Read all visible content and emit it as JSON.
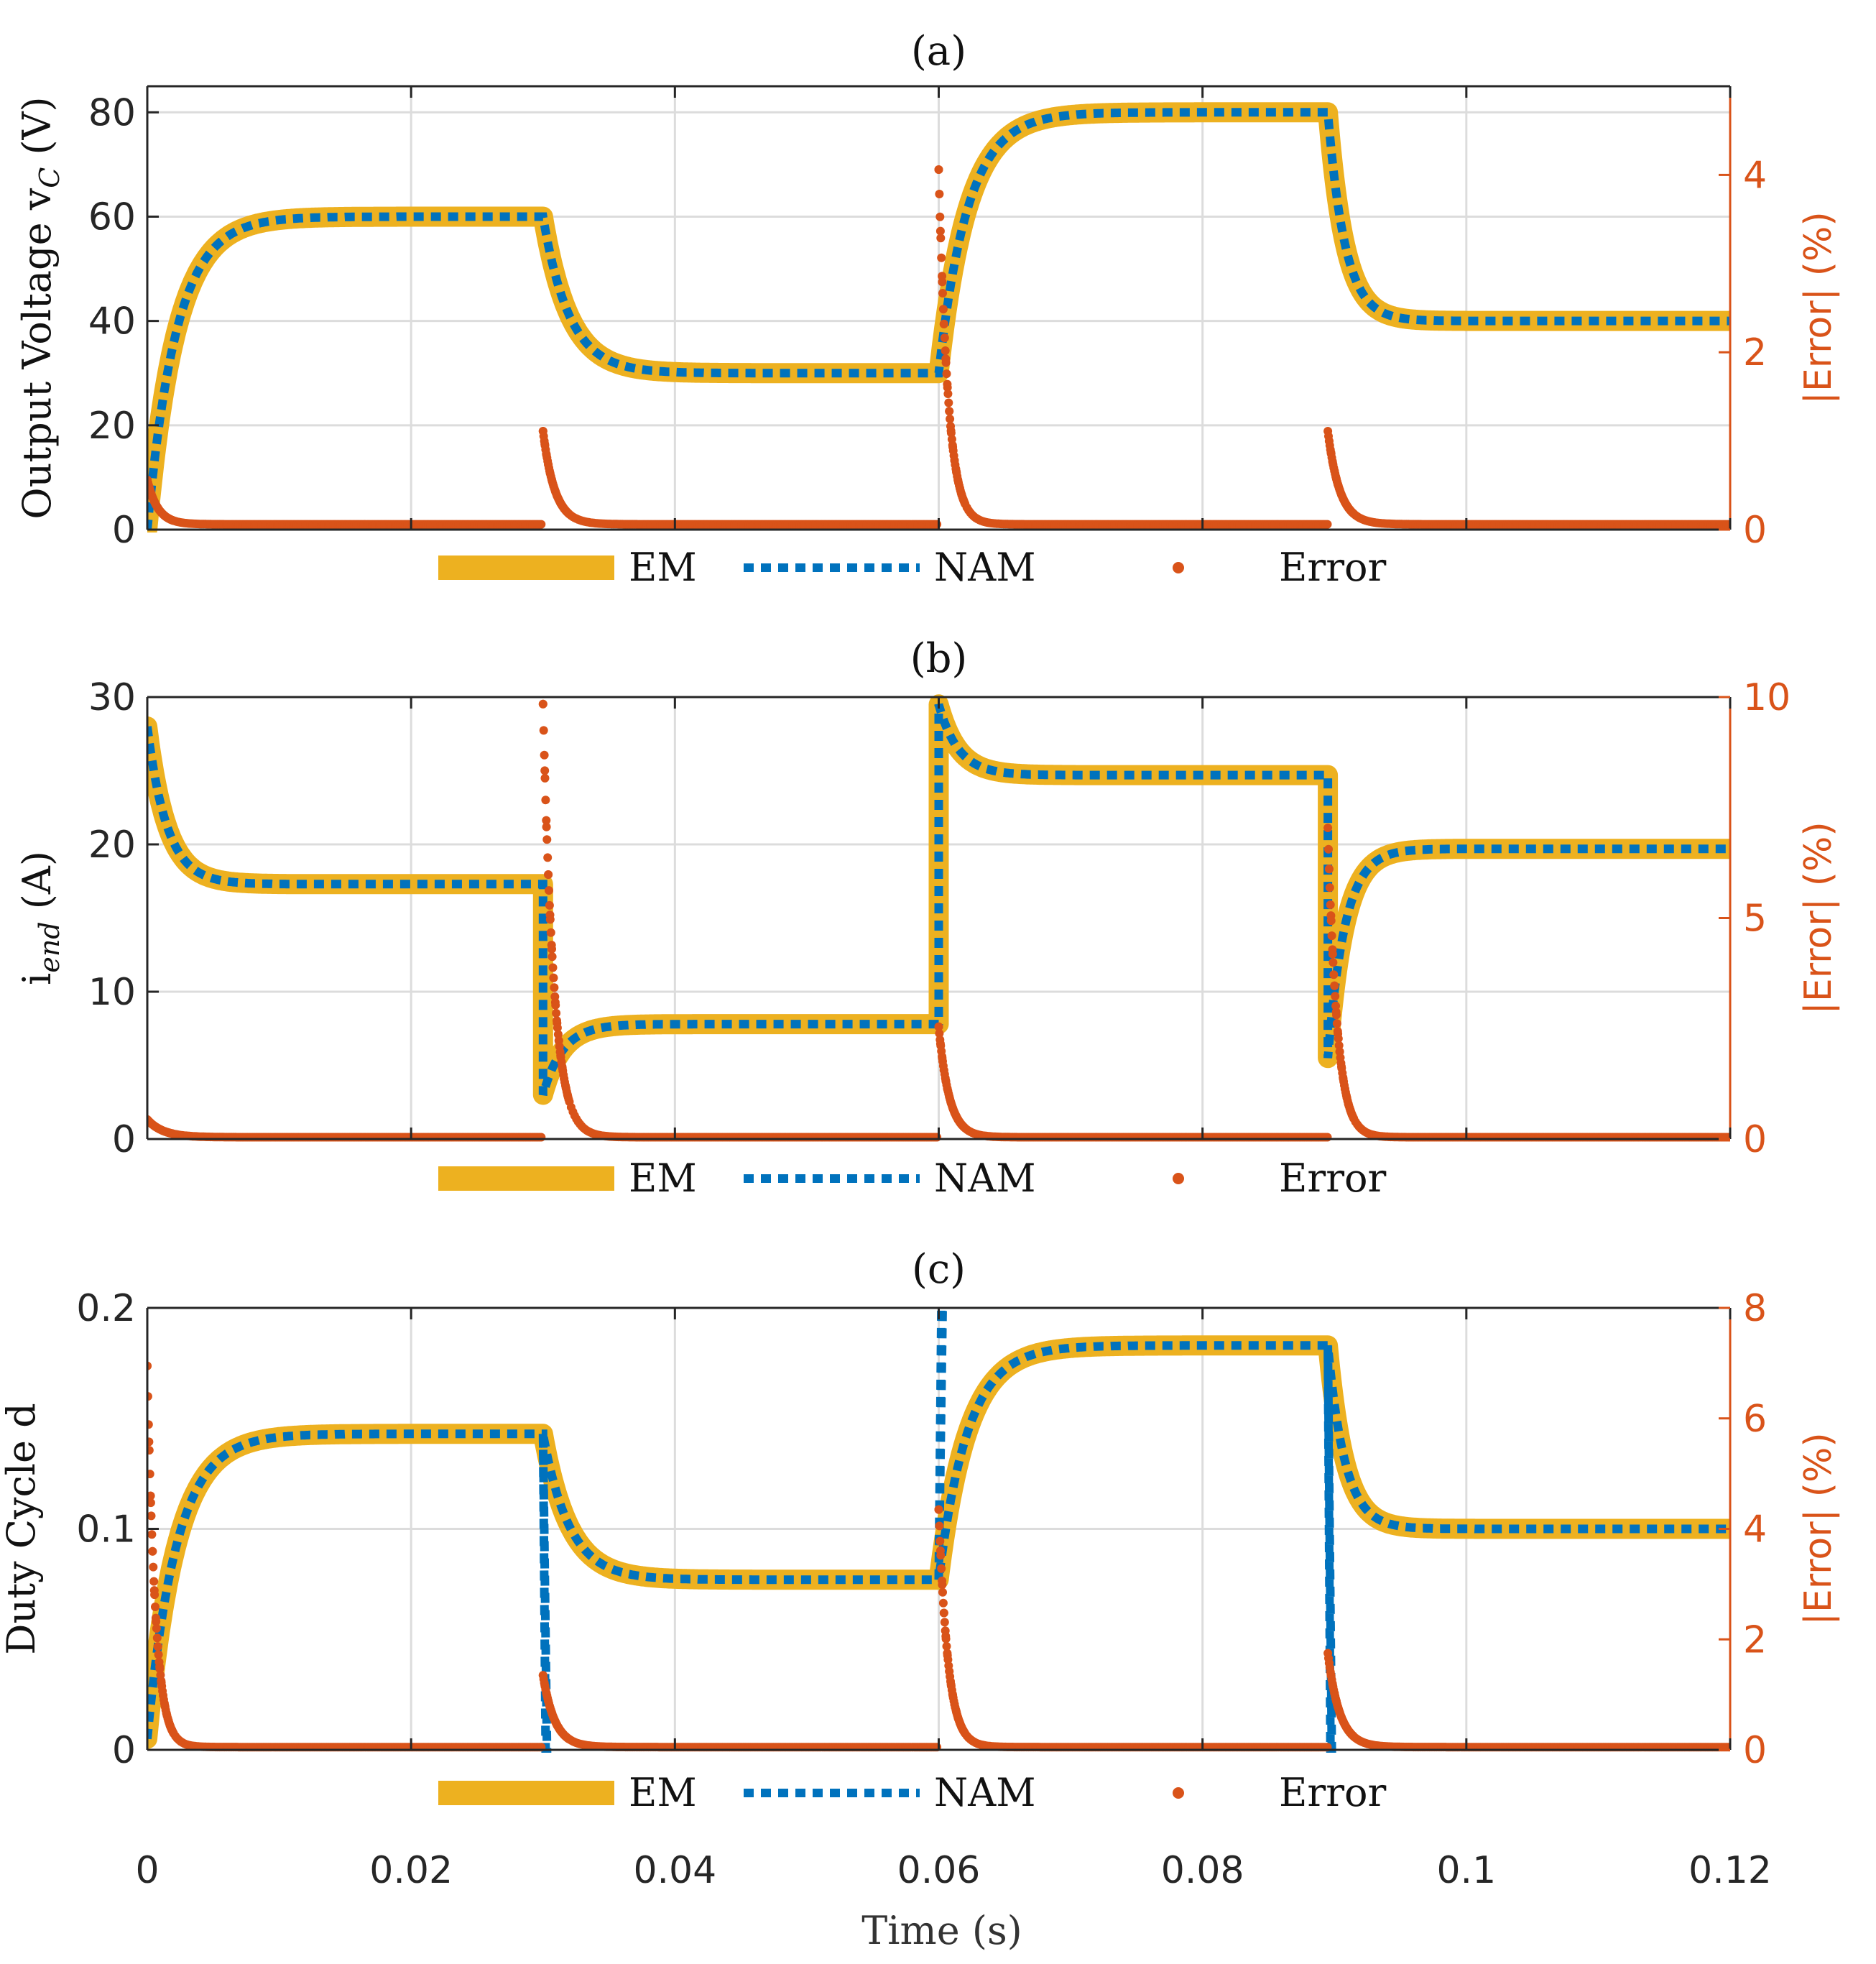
{
  "chart_data": [
    {
      "type": "line",
      "panel_label": "(a)",
      "title": "(a)",
      "ylabel_main": "Output Voltage v",
      "ylabel_sub": "C",
      "ylabel_unit": " (V)",
      "ylabel_right": "|Error| (%)",
      "xlim": [
        0,
        0.12
      ],
      "ylim": [
        0,
        85
      ],
      "yticks": [
        0,
        20,
        40,
        60,
        80
      ],
      "ytick_labels": [
        "0",
        "20",
        "40",
        "60",
        "80"
      ],
      "ylim_right": [
        0,
        5.0
      ],
      "yticks_right": [
        0,
        2,
        4
      ],
      "ytick_labels_right": [
        "0",
        "2",
        "4"
      ],
      "grid": true,
      "segments": [
        {
          "t0": 0.0,
          "t1": 0.03,
          "from": 0,
          "to": 60,
          "tau": 0.0022
        },
        {
          "t0": 0.03,
          "t1": 0.06,
          "from": 60,
          "to": 30,
          "tau": 0.002
        },
        {
          "t0": 0.06,
          "t1": 0.0895,
          "from": 30,
          "to": 80,
          "tau": 0.0022
        },
        {
          "t0": 0.0895,
          "t1": 0.12,
          "from": 80,
          "to": 40,
          "tau": 0.0013
        }
      ],
      "error_spikes": [
        {
          "t": 0.0,
          "peak": 0.5,
          "tau": 0.0008
        },
        {
          "t": 0.03,
          "peak": 1.05,
          "tau": 0.0009
        },
        {
          "t": 0.06,
          "peak": 4.0,
          "tau": 0.0007
        },
        {
          "t": 0.0895,
          "peak": 1.05,
          "tau": 0.0009
        }
      ],
      "error_baseline": 0.06,
      "legend": [
        "EM",
        "NAM",
        "Error"
      ]
    },
    {
      "type": "line",
      "panel_label": "(b)",
      "title": "(b)",
      "ylabel_main": "i",
      "ylabel_sub": "end",
      "ylabel_unit": " (A)",
      "ylabel_right": "|Error| (%)",
      "xlim": [
        0,
        0.12
      ],
      "ylim": [
        0,
        30
      ],
      "yticks": [
        0,
        10,
        20,
        30
      ],
      "ytick_labels": [
        "0",
        "10",
        "20",
        "30"
      ],
      "ylim_right": [
        0,
        10
      ],
      "yticks_right": [
        0,
        5,
        10
      ],
      "ytick_labels_right": [
        "0",
        "5",
        "10"
      ],
      "grid": true,
      "segments": [
        {
          "t0": 0.0,
          "t1": 0.03,
          "from": 28,
          "to": 17.3,
          "tau": 0.0015,
          "dip": null
        },
        {
          "t0": 0.03,
          "t1": 0.06,
          "from": 3,
          "to": 7.8,
          "tau": 0.0015
        },
        {
          "t0": 0.06,
          "t1": 0.0895,
          "from": 29.5,
          "to": 24.7,
          "tau": 0.0015
        },
        {
          "t0": 0.0895,
          "t1": 0.12,
          "from": 5.5,
          "to": 19.7,
          "tau": 0.0013
        }
      ],
      "error_spikes": [
        {
          "t": 0.0,
          "peak": 0.4,
          "tau": 0.0012
        },
        {
          "t": 0.03,
          "peak": 9.8,
          "tau": 0.0008
        },
        {
          "t": 0.06,
          "peak": 2.5,
          "tau": 0.0008
        },
        {
          "t": 0.0895,
          "peak": 7.0,
          "tau": 0.0007
        }
      ],
      "error_baseline": 0.04,
      "legend": [
        "EM",
        "NAM",
        "Error"
      ]
    },
    {
      "type": "line",
      "panel_label": "(c)",
      "title": "(c)",
      "ylabel_main": "Duty Cycle d",
      "ylabel_sub": "",
      "ylabel_unit": "",
      "ylabel_right": "|Error| (%)",
      "xlim": [
        0,
        0.12
      ],
      "ylim": [
        0,
        0.2
      ],
      "yticks": [
        0,
        0.1,
        0.2
      ],
      "ytick_labels": [
        "0",
        "0.1",
        "0.2"
      ],
      "ylim_right": [
        0,
        8
      ],
      "yticks_right": [
        0,
        2,
        4,
        6,
        8
      ],
      "ytick_labels_right": [
        "0",
        "2",
        "4",
        "6",
        "8"
      ],
      "xticks": [
        0,
        0.02,
        0.04,
        0.06,
        0.08,
        0.1,
        0.12
      ],
      "xtick_labels": [
        "0",
        "0.02",
        "0.04",
        "0.06",
        "0.08",
        "0.1",
        "0.12"
      ],
      "xlabel": "Time (s)",
      "grid": true,
      "segments": [
        {
          "t0": 0.0,
          "t1": 0.03,
          "from": 0.005,
          "to": 0.143,
          "tau": 0.0022
        },
        {
          "t0": 0.03,
          "t1": 0.06,
          "from": 0.143,
          "to": 0.077,
          "tau": 0.002
        },
        {
          "t0": 0.06,
          "t1": 0.0895,
          "from": 0.077,
          "to": 0.183,
          "tau": 0.0022
        },
        {
          "t0": 0.0895,
          "t1": 0.12,
          "from": 0.183,
          "to": 0.1,
          "tau": 0.0013
        }
      ],
      "nam_spikes": [
        {
          "t": 0.03,
          "value": 0.0
        },
        {
          "t": 0.06,
          "value": 0.2
        },
        {
          "t": 0.0895,
          "value": 0.0
        }
      ],
      "error_spikes": [
        {
          "t": 0.0,
          "peak": 6.9,
          "tau": 0.0006
        },
        {
          "t": 0.03,
          "peak": 1.3,
          "tau": 0.0009
        },
        {
          "t": 0.06,
          "peak": 4.3,
          "tau": 0.0007
        },
        {
          "t": 0.0895,
          "peak": 1.7,
          "tau": 0.0009
        }
      ],
      "error_baseline": 0.05,
      "legend": [
        "EM",
        "NAM",
        "Error"
      ]
    }
  ],
  "colors": {
    "em": "#EDB120",
    "nam": "#0072BD",
    "error": "#D95319",
    "grid": "#dcdcdc",
    "axis": "#262626"
  }
}
